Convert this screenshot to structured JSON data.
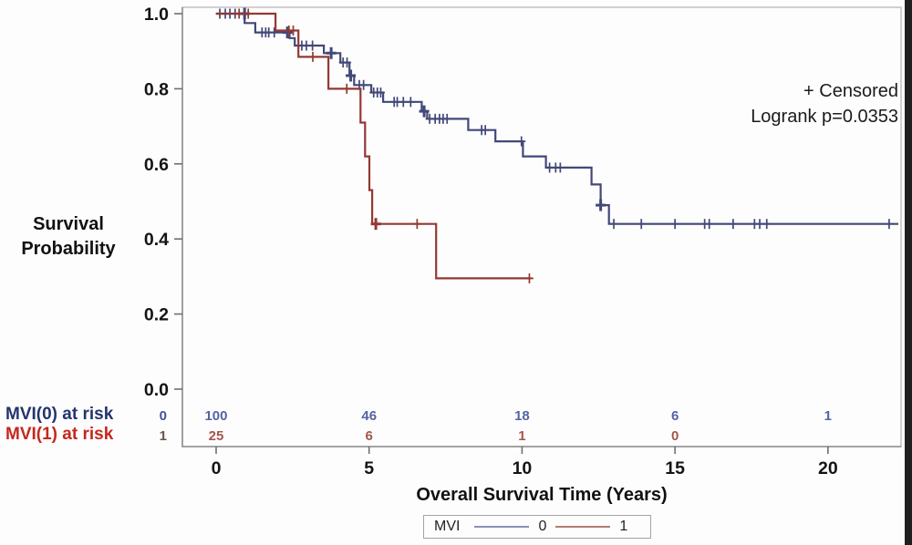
{
  "y_axis_label": {
    "line1": "Survival",
    "line2": "Probability"
  },
  "x_axis_label": "Overall Survival Time (Years)",
  "annotations": {
    "censored": "+ Censored",
    "logrank": "Logrank p=0.0353"
  },
  "at_risk_labels": [
    {
      "text": "MVI(0) at risk",
      "color": "#24356e"
    },
    {
      "text": "MVI(1) at risk",
      "color": "#c5271f"
    }
  ],
  "legend": {
    "title": "MVI",
    "entries": [
      {
        "label": "0",
        "color": "#8a8fb8"
      },
      {
        "label": "1",
        "color": "#b07f72"
      }
    ]
  },
  "chart_data": {
    "type": "line",
    "subtype": "kaplan_meier_step",
    "title": "",
    "xlabel": "Overall Survival Time (Years)",
    "ylabel": "Survival Probability",
    "logrank_p": "0.0353",
    "censored_marker": "+",
    "grid": false,
    "legend_position": "bottom",
    "xlim": [
      -1.103,
      22.39
    ],
    "ylim": [
      -0.153,
      1.017
    ],
    "x_ticks": [
      0,
      5,
      10,
      15,
      20
    ],
    "x_tick_labels": [
      "0",
      "5",
      "10",
      "15",
      "20"
    ],
    "y_ticks": [
      1.0,
      0.8,
      0.6,
      0.4,
      0.2,
      0.0
    ],
    "y_tick_labels": [
      "1.0",
      "0.8",
      "0.6",
      "0.4",
      "0.2",
      "0.0"
    ],
    "series": [
      {
        "name": "0",
        "group": "MVI(0)",
        "color": "#424878",
        "end_t": 22.3,
        "steps": [
          [
            0,
            1.0
          ],
          [
            0.93,
            0.975
          ],
          [
            1.28,
            0.95
          ],
          [
            2.4,
            0.935
          ],
          [
            2.57,
            0.915
          ],
          [
            3.52,
            0.895
          ],
          [
            4.06,
            0.87
          ],
          [
            4.36,
            0.835
          ],
          [
            4.51,
            0.81
          ],
          [
            5.07,
            0.79
          ],
          [
            5.46,
            0.765
          ],
          [
            6.72,
            0.74
          ],
          [
            6.9,
            0.72
          ],
          [
            8.24,
            0.69
          ],
          [
            9.13,
            0.66
          ],
          [
            10.03,
            0.62
          ],
          [
            10.78,
            0.59
          ],
          [
            12.27,
            0.545
          ],
          [
            12.57,
            0.49
          ],
          [
            12.84,
            0.44
          ]
        ],
        "censors": [
          [
            0.12,
            1
          ],
          [
            0.3,
            1
          ],
          [
            0.45,
            1
          ],
          [
            0.62,
            1
          ],
          [
            0.93,
            1,
            1
          ],
          [
            1.5,
            0.95
          ],
          [
            1.62,
            0.95
          ],
          [
            1.72,
            0.95
          ],
          [
            1.9,
            0.95
          ],
          [
            2.33,
            0.95,
            1
          ],
          [
            2.8,
            0.915
          ],
          [
            2.95,
            0.915
          ],
          [
            3.15,
            0.915
          ],
          [
            3.76,
            0.895,
            1
          ],
          [
            4.15,
            0.87
          ],
          [
            4.28,
            0.87
          ],
          [
            4.4,
            0.835,
            1
          ],
          [
            4.68,
            0.81
          ],
          [
            4.82,
            0.81
          ],
          [
            5.15,
            0.79
          ],
          [
            5.27,
            0.79
          ],
          [
            5.38,
            0.79
          ],
          [
            5.82,
            0.765
          ],
          [
            5.92,
            0.765
          ],
          [
            6.12,
            0.765
          ],
          [
            6.36,
            0.765
          ],
          [
            6.8,
            0.74,
            1
          ],
          [
            6.98,
            0.72
          ],
          [
            7.16,
            0.72
          ],
          [
            7.3,
            0.72
          ],
          [
            7.42,
            0.72
          ],
          [
            7.55,
            0.72
          ],
          [
            8.68,
            0.69
          ],
          [
            8.8,
            0.69
          ],
          [
            9.98,
            0.66
          ],
          [
            10.9,
            0.59
          ],
          [
            11.1,
            0.59
          ],
          [
            11.25,
            0.59
          ],
          [
            12.57,
            0.49,
            1
          ],
          [
            13.0,
            0.44
          ],
          [
            13.9,
            0.44
          ],
          [
            15.0,
            0.44
          ],
          [
            15.97,
            0.44
          ],
          [
            16.12,
            0.44
          ],
          [
            16.9,
            0.44
          ],
          [
            17.6,
            0.44
          ],
          [
            17.77,
            0.44
          ],
          [
            18.0,
            0.44
          ],
          [
            22.0,
            0.44
          ]
        ]
      },
      {
        "name": "1",
        "group": "MVI(1)",
        "color": "#943832",
        "end_t": 10.3,
        "steps": [
          [
            0,
            1.0
          ],
          [
            1.94,
            0.955
          ],
          [
            2.69,
            0.885
          ],
          [
            3.67,
            0.8
          ],
          [
            4.72,
            0.71
          ],
          [
            4.87,
            0.62
          ],
          [
            5.01,
            0.53
          ],
          [
            5.1,
            0.44
          ],
          [
            7.19,
            0.295
          ]
        ],
        "censors": [
          [
            0.75,
            1
          ],
          [
            1.05,
            1
          ],
          [
            2.38,
            0.955
          ],
          [
            2.52,
            0.955
          ],
          [
            3.16,
            0.885
          ],
          [
            4.27,
            0.8
          ],
          [
            5.22,
            0.44,
            1
          ],
          [
            6.57,
            0.44
          ],
          [
            10.24,
            0.295
          ]
        ]
      }
    ],
    "at_risk_table": {
      "times": [
        0,
        5,
        10,
        15,
        20
      ],
      "rows": [
        {
          "group": "0",
          "key_color": "#44529a",
          "color": "#5563a4",
          "counts": [
            "100",
            "46",
            "18",
            "6",
            "1"
          ]
        },
        {
          "group": "1",
          "key_color": "#6d524d",
          "color": "#a2574c",
          "counts": [
            "25",
            "6",
            "1",
            "0",
            ""
          ]
        }
      ]
    }
  }
}
